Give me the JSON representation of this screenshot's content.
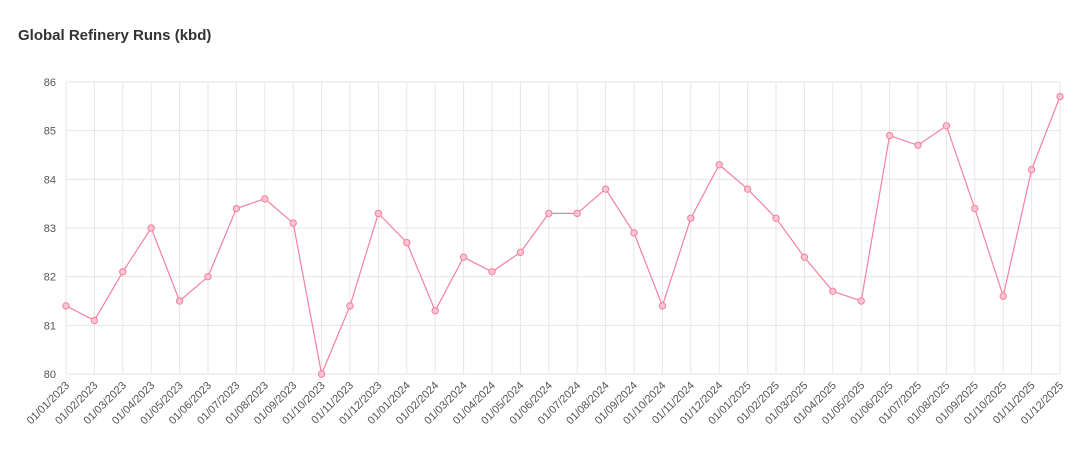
{
  "chart_data": {
    "type": "line",
    "title": "Global Refinery Runs (kbd)",
    "categories": [
      "01/01/2023",
      "01/02/2023",
      "01/03/2023",
      "01/04/2023",
      "01/05/2023",
      "01/06/2023",
      "01/07/2023",
      "01/08/2023",
      "01/09/2023",
      "01/10/2023",
      "01/11/2023",
      "01/12/2023",
      "01/01/2024",
      "01/02/2024",
      "01/03/2024",
      "01/04/2024",
      "01/05/2024",
      "01/06/2024",
      "01/07/2024",
      "01/08/2024",
      "01/09/2024",
      "01/10/2024",
      "01/11/2024",
      "01/12/2024",
      "01/01/2025",
      "01/02/2025",
      "01/03/2025",
      "01/04/2025",
      "01/05/2025",
      "01/06/2025",
      "01/07/2025",
      "01/08/2025",
      "01/09/2025",
      "01/10/2025",
      "01/11/2025",
      "01/12/2025"
    ],
    "values": [
      81.4,
      81.1,
      82.1,
      83.0,
      81.5,
      82.0,
      83.4,
      83.6,
      83.1,
      80.0,
      81.4,
      83.3,
      82.7,
      81.3,
      82.4,
      82.1,
      82.5,
      83.3,
      83.3,
      83.8,
      82.9,
      81.4,
      83.2,
      84.3,
      83.8,
      83.2,
      82.4,
      81.7,
      81.5,
      84.9,
      84.7,
      85.1,
      83.4,
      81.6,
      84.2,
      85.7
    ],
    "color": "#f5819f",
    "ylim": [
      80,
      86
    ],
    "yticks": [
      80,
      81,
      82,
      83,
      84,
      85,
      86
    ],
    "grid": true
  }
}
